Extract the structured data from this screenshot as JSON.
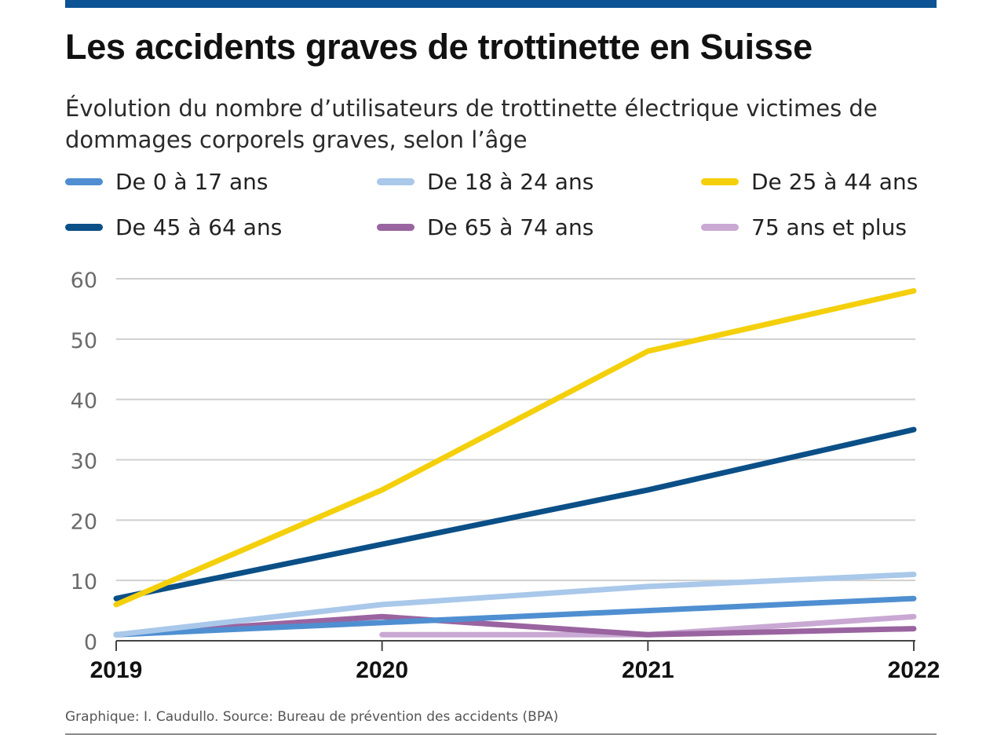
{
  "header": {
    "title": "Les accidents graves de trottinette en Suisse",
    "subtitle": "Évolution du nombre d’utilisateurs de trottinette électrique victimes de dommages corporels graves, selon l’âge"
  },
  "colors": {
    "topbar": "#0b5394",
    "grid": "#cfcfcf",
    "axis": "#444444",
    "tick_text": "#6b6b6b"
  },
  "legend": [
    {
      "label": "De 0 à 17 ans",
      "color": "#4f8fd1"
    },
    {
      "label": "De 18 à 24 ans",
      "color": "#a9c8ea"
    },
    {
      "label": "De 25 à 44 ans",
      "color": "#f4d00c"
    },
    {
      "label": "De 45 à 64 ans",
      "color": "#0b4f87"
    },
    {
      "label": "De 65 à 74 ans",
      "color": "#9a64a0"
    },
    {
      "label": "75 ans et plus",
      "color": "#c9a9d3"
    }
  ],
  "chart_data": {
    "type": "line",
    "title": "Les accidents graves de trottinette en Suisse",
    "xlabel": "",
    "ylabel": "",
    "x": [
      "2019",
      "2020",
      "2021",
      "2022"
    ],
    "ylim": [
      0,
      60
    ],
    "yticks": [
      0,
      10,
      20,
      30,
      40,
      50,
      60
    ],
    "grid": true,
    "legend_position": "top",
    "series": [
      {
        "name": "De 0 à 17 ans",
        "color": "#4f8fd1",
        "values": [
          1,
          3,
          5,
          7
        ]
      },
      {
        "name": "De 18 à 24 ans",
        "color": "#a9c8ea",
        "values": [
          1,
          6,
          9,
          11
        ]
      },
      {
        "name": "De 25 à 44 ans",
        "color": "#f4d00c",
        "values": [
          6,
          25,
          48,
          58
        ]
      },
      {
        "name": "De 45 à 64 ans",
        "color": "#0b4f87",
        "values": [
          7,
          16,
          25,
          35
        ]
      },
      {
        "name": "De 65 à 74 ans",
        "color": "#9a64a0",
        "values": [
          1,
          4,
          1,
          2
        ]
      },
      {
        "name": "75 ans et plus",
        "color": "#c9a9d3",
        "values": [
          null,
          1,
          1,
          4
        ]
      }
    ]
  },
  "footer": {
    "source": "Graphique: I. Caudullo. Source: Bureau de prévention des accidents (BPA)"
  }
}
